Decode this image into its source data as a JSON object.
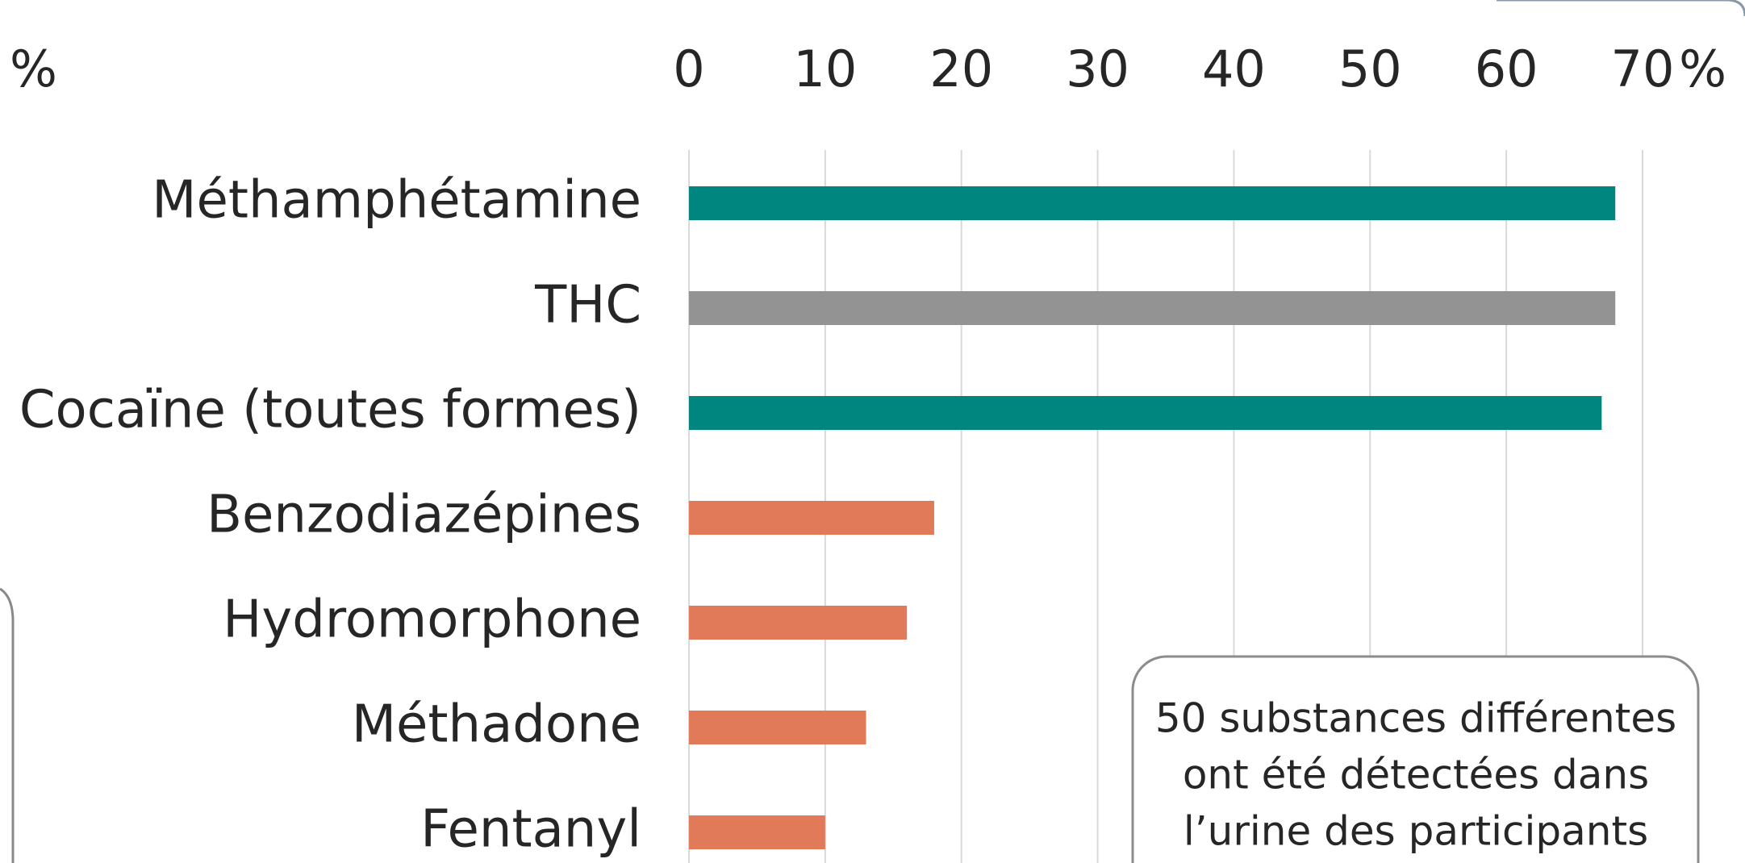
{
  "chart_data": {
    "type": "bar",
    "orientation": "horizontal",
    "categories": [
      "Méthamphétamine",
      "THC",
      "Cocaïne (toutes formes)",
      "Benzodiazépines",
      "Hydromorphone",
      "Méthadone",
      "Fentanyl"
    ],
    "values": [
      68,
      68,
      67,
      18,
      16,
      13,
      10
    ],
    "colors": [
      "#00857f",
      "#939393",
      "#00857f",
      "#e07a58",
      "#e07a58",
      "#e07a58",
      "#e07a58"
    ],
    "xlim": [
      0,
      70
    ],
    "xticks": [
      0,
      10,
      20,
      30,
      40,
      50,
      60,
      70
    ],
    "axis_unit": "%",
    "side_fragment": "%",
    "grid": true,
    "annotation": [
      "50 substances différentes",
      "ont été détectées dans",
      "l’urine des participants"
    ]
  }
}
